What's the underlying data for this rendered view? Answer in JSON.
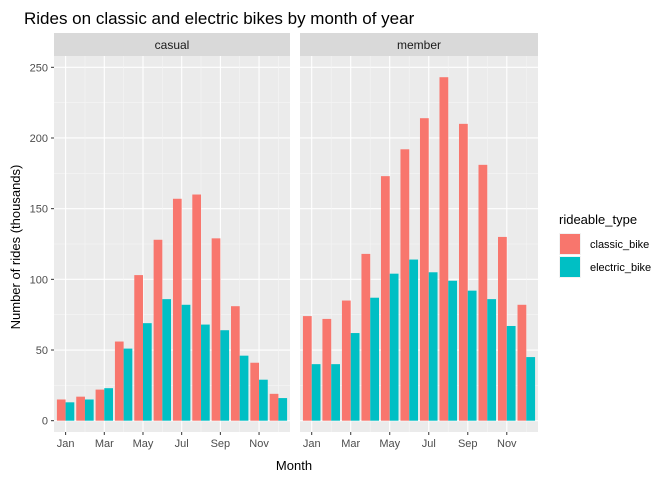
{
  "chart_data": {
    "type": "bar",
    "title": "Rides on classic and electric bikes by month of year",
    "xlabel": "Month",
    "ylabel": "Number of rides (thousands)",
    "ylim": [
      -8,
      258
    ],
    "yticks": [
      0,
      50,
      100,
      150,
      200,
      250
    ],
    "months": [
      "Jan",
      "Feb",
      "Mar",
      "Apr",
      "May",
      "Jun",
      "Jul",
      "Aug",
      "Sep",
      "Oct",
      "Nov",
      "Dec"
    ],
    "xtick_labels": [
      "Jan",
      "Mar",
      "May",
      "Jul",
      "Sep",
      "Nov"
    ],
    "grid": true,
    "legend": {
      "title": "rideable_type",
      "position": "right",
      "entries": [
        {
          "name": "classic_bike",
          "color": "#F8766D"
        },
        {
          "name": "electric_bike",
          "color": "#00BFC4"
        }
      ]
    },
    "panels": [
      {
        "strip": "casual",
        "series": [
          {
            "name": "classic_bike",
            "values": [
              15,
              17,
              22,
              56,
              103,
              128,
              157,
              160,
              129,
              81,
              41,
              19
            ]
          },
          {
            "name": "electric_bike",
            "values": [
              13,
              15,
              23,
              51,
              69,
              86,
              82,
              68,
              64,
              46,
              29,
              16
            ]
          }
        ]
      },
      {
        "strip": "member",
        "series": [
          {
            "name": "classic_bike",
            "values": [
              74,
              72,
              85,
              118,
              173,
              192,
              214,
              243,
              210,
              181,
              130,
              82
            ]
          },
          {
            "name": "electric_bike",
            "values": [
              40,
              40,
              62,
              87,
              104,
              114,
              105,
              99,
              92,
              86,
              67,
              45
            ]
          }
        ]
      }
    ]
  }
}
